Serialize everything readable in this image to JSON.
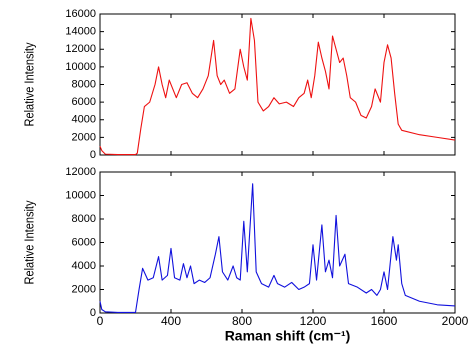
{
  "chart_data": [
    {
      "type": "line",
      "ylabel": "Relative Intensity",
      "color": "#ee1111",
      "xlim": [
        0,
        2000
      ],
      "xticks": [
        0,
        400,
        800,
        1200,
        1600,
        2000
      ],
      "ylim": [
        0,
        16000
      ],
      "yticks": [
        0,
        2000,
        4000,
        6000,
        8000,
        10000,
        12000,
        14000,
        16000
      ],
      "x": [
        0,
        10,
        30,
        100,
        200,
        210,
        230,
        250,
        280,
        310,
        330,
        350,
        370,
        390,
        410,
        430,
        460,
        490,
        520,
        550,
        580,
        610,
        640,
        660,
        680,
        700,
        730,
        760,
        790,
        810,
        830,
        850,
        870,
        890,
        920,
        950,
        980,
        1010,
        1050,
        1090,
        1120,
        1150,
        1170,
        1190,
        1210,
        1230,
        1250,
        1270,
        1290,
        1310,
        1330,
        1350,
        1370,
        1390,
        1410,
        1440,
        1470,
        1500,
        1530,
        1550,
        1580,
        1600,
        1620,
        1640,
        1660,
        1680,
        1700,
        1800,
        1900,
        2000
      ],
      "values": [
        1000,
        500,
        100,
        50,
        50,
        200,
        3000,
        5500,
        6000,
        8000,
        10000,
        8000,
        6500,
        8500,
        7500,
        6500,
        8000,
        8200,
        7000,
        6500,
        7500,
        9000,
        13000,
        9000,
        8000,
        8500,
        7000,
        7500,
        12000,
        10000,
        8500,
        15500,
        13000,
        6000,
        5000,
        5500,
        6500,
        5800,
        6000,
        5500,
        6500,
        7000,
        8500,
        6500,
        9000,
        12800,
        11000,
        9500,
        7500,
        13500,
        12000,
        10500,
        11000,
        9000,
        6500,
        6000,
        4500,
        4200,
        5500,
        7500,
        6000,
        10500,
        12500,
        11000,
        7000,
        3500,
        2800,
        2300,
        2000,
        1700
      ]
    },
    {
      "type": "line",
      "ylabel": "Relative Intensity",
      "xlabel": "Raman shift (cm⁻¹)",
      "color": "#1111dd",
      "xlim": [
        0,
        2000
      ],
      "xticks": [
        0,
        400,
        800,
        1200,
        1600,
        2000
      ],
      "ylim": [
        0,
        12000
      ],
      "yticks": [
        0,
        2000,
        4000,
        6000,
        8000,
        10000,
        12000
      ],
      "x": [
        0,
        10,
        30,
        100,
        200,
        220,
        240,
        270,
        300,
        330,
        350,
        380,
        400,
        420,
        450,
        470,
        490,
        510,
        530,
        560,
        590,
        620,
        650,
        670,
        690,
        720,
        750,
        770,
        790,
        810,
        830,
        860,
        880,
        910,
        950,
        980,
        1000,
        1040,
        1080,
        1120,
        1150,
        1180,
        1200,
        1220,
        1250,
        1270,
        1290,
        1310,
        1330,
        1350,
        1380,
        1400,
        1450,
        1500,
        1530,
        1560,
        1580,
        1600,
        1620,
        1650,
        1670,
        1680,
        1700,
        1720,
        1800,
        1900,
        2000
      ],
      "values": [
        1000,
        300,
        100,
        50,
        50,
        2000,
        3800,
        2800,
        3000,
        4800,
        2800,
        3200,
        5500,
        3000,
        2800,
        4200,
        3000,
        4000,
        2500,
        2800,
        2600,
        3000,
        5000,
        6500,
        3500,
        2800,
        4000,
        3000,
        2800,
        7800,
        3500,
        11000,
        3500,
        2500,
        2200,
        3200,
        2500,
        2200,
        2600,
        2000,
        2200,
        2500,
        5800,
        2800,
        7500,
        3500,
        4500,
        3000,
        8300,
        4000,
        5000,
        2500,
        2200,
        1700,
        2000,
        1500,
        2000,
        3500,
        2000,
        6500,
        4500,
        5800,
        2500,
        1500,
        1000,
        700,
        600
      ]
    }
  ]
}
